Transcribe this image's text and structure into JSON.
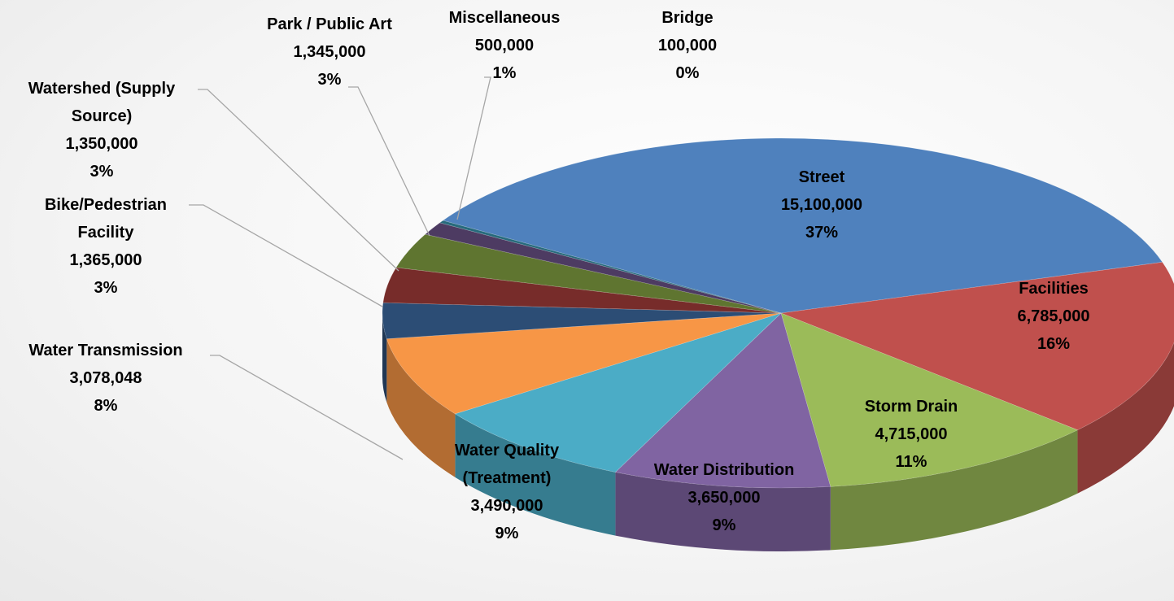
{
  "chart_data": {
    "type": "pie3d",
    "categories": [
      "Street",
      "Facilities",
      "Storm Drain",
      "Water Distribution",
      "Water Quality (Treatment)",
      "Water Transmission",
      "Bike/Pedestrian Facility",
      "Watershed (Supply Source)",
      "Park / Public Art",
      "Miscellaneous",
      "Bridge"
    ],
    "values": [
      15100000,
      6785000,
      4715000,
      3650000,
      3490000,
      3078048,
      1365000,
      1350000,
      1345000,
      500000,
      100000
    ],
    "value_labels": [
      "15,100,000",
      "6,785,000",
      "4,715,000",
      "3,650,000",
      "3,490,000",
      "3,078,048",
      "1,365,000",
      "1,350,000",
      "1,345,000",
      "500,000",
      "100,000"
    ],
    "percent_labels": [
      "37%",
      "16%",
      "11%",
      "9%",
      "9%",
      "8%",
      "3%",
      "3%",
      "3%",
      "1%",
      "0%"
    ],
    "colors": [
      "#4f81bd",
      "#c0504d",
      "#9bbb59",
      "#8064a2",
      "#4bacc6",
      "#f79646",
      "#2c4d75",
      "#772c2a",
      "#5f7530",
      "#4d3b62",
      "#276a7c"
    ]
  }
}
